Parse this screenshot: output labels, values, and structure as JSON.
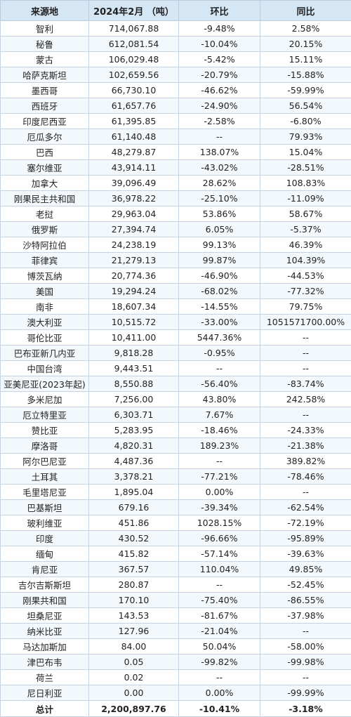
{
  "headers": [
    "来源地",
    "2024年2月 （吨）",
    "环比",
    "同比"
  ],
  "rows": [
    [
      "智利",
      "714,067.88",
      "-9.48%",
      "2.58%"
    ],
    [
      "秘鲁",
      "612,081.54",
      "-10.04%",
      "20.15%"
    ],
    [
      "蒙古",
      "106,029.48",
      "-5.42%",
      "15.11%"
    ],
    [
      "哈萨克斯坦",
      "102,659.56",
      "-20.79%",
      "-15.88%"
    ],
    [
      "墨西哥",
      "66,730.10",
      "-46.62%",
      "-59.99%"
    ],
    [
      "西班牙",
      "61,657.76",
      "-24.90%",
      "56.54%"
    ],
    [
      "印度尼西亚",
      "61,395.85",
      "-2.58%",
      "-6.80%"
    ],
    [
      "厄瓜多尔",
      "61,140.48",
      "--",
      "79.93%"
    ],
    [
      "巴西",
      "48,279.87",
      "138.07%",
      "15.04%"
    ],
    [
      "塞尔维亚",
      "43,914.11",
      "-43.02%",
      "-28.51%"
    ],
    [
      "加拿大",
      "39,096.49",
      "28.62%",
      "108.83%"
    ],
    [
      "刚果民主共和国",
      "36,978.22",
      "-25.10%",
      "-11.09%"
    ],
    [
      "老挝",
      "29,963.04",
      "53.86%",
      "58.67%"
    ],
    [
      "俄罗斯",
      "27,394.74",
      "6.05%",
      "-5.37%"
    ],
    [
      "沙特阿拉伯",
      "24,238.19",
      "99.13%",
      "46.39%"
    ],
    [
      "菲律宾",
      "21,279.13",
      "99.87%",
      "104.39%"
    ],
    [
      "博茨瓦纳",
      "20,774.36",
      "-46.90%",
      "-44.53%"
    ],
    [
      "美国",
      "19,294.24",
      "-68.02%",
      "-77.32%"
    ],
    [
      "南非",
      "18,607.34",
      "-14.55%",
      "79.75%"
    ],
    [
      "澳大利亚",
      "10,515.72",
      "-33.00%",
      "1051571700.00%"
    ],
    [
      "哥伦比亚",
      "10,411.00",
      "5447.36%",
      "--"
    ],
    [
      "巴布亚新几内亚",
      "9,818.28",
      "-0.95%",
      "--"
    ],
    [
      "中国台湾",
      "9,443.51",
      "--",
      "--"
    ],
    [
      "亚美尼亚(2023年起)",
      "8,550.88",
      "-56.40%",
      "-83.74%"
    ],
    [
      "多米尼加",
      "7,256.00",
      "43.80%",
      "242.58%"
    ],
    [
      "厄立特里亚",
      "6,303.71",
      "7.67%",
      "--"
    ],
    [
      "赞比亚",
      "5,283.95",
      "-18.46%",
      "-24.33%"
    ],
    [
      "摩洛哥",
      "4,820.31",
      "189.23%",
      "-21.38%"
    ],
    [
      "阿尔巴尼亚",
      "4,487.36",
      "--",
      "389.82%"
    ],
    [
      "土耳其",
      "3,378.21",
      "-77.21%",
      "-78.46%"
    ],
    [
      "毛里塔尼亚",
      "1,895.04",
      "0.00%",
      "--"
    ],
    [
      "巴基斯坦",
      "679.16",
      "-39.34%",
      "-62.54%"
    ],
    [
      "玻利维亚",
      "451.86",
      "1028.15%",
      "-72.19%"
    ],
    [
      "印度",
      "430.52",
      "-96.66%",
      "-95.89%"
    ],
    [
      "缅甸",
      "415.82",
      "-57.14%",
      "-39.63%"
    ],
    [
      "肯尼亚",
      "367.57",
      "110.04%",
      "49.85%"
    ],
    [
      "吉尔吉斯斯坦",
      "280.87",
      "--",
      "-52.45%"
    ],
    [
      "刚果共和国",
      "170.10",
      "-75.40%",
      "-86.55%"
    ],
    [
      "坦桑尼亚",
      "143.53",
      "-81.67%",
      "-37.98%"
    ],
    [
      "纳米比亚",
      "127.96",
      "-21.04%",
      "--"
    ],
    [
      "马达加斯加",
      "84.00",
      "50.04%",
      "-58.00%"
    ],
    [
      "津巴布韦",
      "0.05",
      "-99.82%",
      "-99.98%"
    ],
    [
      "荷兰",
      "0.02",
      "--",
      "--"
    ],
    [
      "尼日利亚",
      "0.00",
      "0.00%",
      "-99.99%"
    ]
  ],
  "total": [
    "总计",
    "2,200,897.76",
    "-10.41%",
    "-3.18%"
  ]
}
